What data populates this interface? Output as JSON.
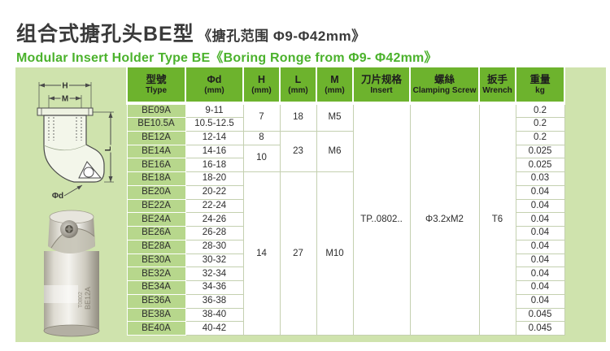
{
  "page": {
    "title_zh": "组合式搪孔头BE型",
    "title_zh_sub": "《搪孔范围 Φ9-Φ42mm》",
    "subtitle_en": "Modular Insert Holder Type BE《Boring Ronge from  Φ9- Φ42mm》"
  },
  "colors": {
    "header_green": "#6db32d",
    "panel_green": "#cfe3ad",
    "model_cell_green": "#b7d78c",
    "subtitle_green": "#4bb22c",
    "title_text": "#3a3a3a"
  },
  "diagram": {
    "name": "boring-head-dimension-drawing",
    "labels": {
      "h": "H",
      "m": "M",
      "l": "L",
      "d": "Φd"
    }
  },
  "photo": {
    "name": "boring-head-product-photo",
    "marking_line1": "BE12A",
    "marking_line2": "T0802"
  },
  "table": {
    "headers": [
      {
        "key": "type",
        "zh": "型號",
        "en": "Tlype"
      },
      {
        "key": "d",
        "zh": "Φd",
        "en": "(mm)"
      },
      {
        "key": "h",
        "zh": "H",
        "en": "(mm)"
      },
      {
        "key": "l",
        "zh": "L",
        "en": "(mm)"
      },
      {
        "key": "m",
        "zh": "M",
        "en": "(mm)"
      },
      {
        "key": "insert",
        "zh": "刀片规格",
        "en": "Insert"
      },
      {
        "key": "screw",
        "zh": "螺絲",
        "en": "Clamping Screw"
      },
      {
        "key": "wrench",
        "zh": "扳手",
        "en": "Wrench"
      },
      {
        "key": "weight",
        "zh": "重量",
        "en": "kg"
      }
    ],
    "rows": [
      {
        "type": "BE09A",
        "d": "9-11",
        "weight": "0.2"
      },
      {
        "type": "BE10.5A",
        "d": "10.5-12.5",
        "weight": "0.2"
      },
      {
        "type": "BE12A",
        "d": "12-14",
        "weight": "0.2"
      },
      {
        "type": "BE14A",
        "d": "14-16",
        "weight": "0.025"
      },
      {
        "type": "BE16A",
        "d": "16-18",
        "weight": "0.025"
      },
      {
        "type": "BE18A",
        "d": "18-20",
        "weight": "0.03"
      },
      {
        "type": "BE20A",
        "d": "20-22",
        "weight": "0.04"
      },
      {
        "type": "BE22A",
        "d": "22-24",
        "weight": "0.04"
      },
      {
        "type": "BE24A",
        "d": "24-26",
        "weight": "0.04"
      },
      {
        "type": "BE26A",
        "d": "26-28",
        "weight": "0.04"
      },
      {
        "type": "BE28A",
        "d": "28-30",
        "weight": "0.04"
      },
      {
        "type": "BE30A",
        "d": "30-32",
        "weight": "0.04"
      },
      {
        "type": "BE32A",
        "d": "32-34",
        "weight": "0.04"
      },
      {
        "type": "BE34A",
        "d": "34-36",
        "weight": "0.04"
      },
      {
        "type": "BE36A",
        "d": "36-38",
        "weight": "0.04"
      },
      {
        "type": "BE38A",
        "d": "38-40",
        "weight": "0.045"
      },
      {
        "type": "BE40A",
        "d": "40-42",
        "weight": "0.045"
      }
    ],
    "merged": {
      "h": [
        {
          "start": 0,
          "span": 2,
          "value": "7"
        },
        {
          "start": 2,
          "span": 1,
          "value": "8"
        },
        {
          "start": 3,
          "span": 2,
          "value": "10"
        },
        {
          "start": 5,
          "span": 12,
          "value": "14"
        }
      ],
      "l": [
        {
          "start": 0,
          "span": 2,
          "value": "18"
        },
        {
          "start": 2,
          "span": 3,
          "value": "23"
        },
        {
          "start": 5,
          "span": 12,
          "value": "27"
        }
      ],
      "m": [
        {
          "start": 0,
          "span": 2,
          "value": "M5"
        },
        {
          "start": 2,
          "span": 3,
          "value": "M6"
        },
        {
          "start": 5,
          "span": 12,
          "value": "M10"
        }
      ],
      "insert": [
        {
          "start": 0,
          "span": 17,
          "value": "TP..0802.."
        }
      ],
      "screw": [
        {
          "start": 0,
          "span": 17,
          "value": "Φ3.2xM2"
        }
      ],
      "wrench": [
        {
          "start": 0,
          "span": 17,
          "value": "T6"
        }
      ]
    }
  }
}
